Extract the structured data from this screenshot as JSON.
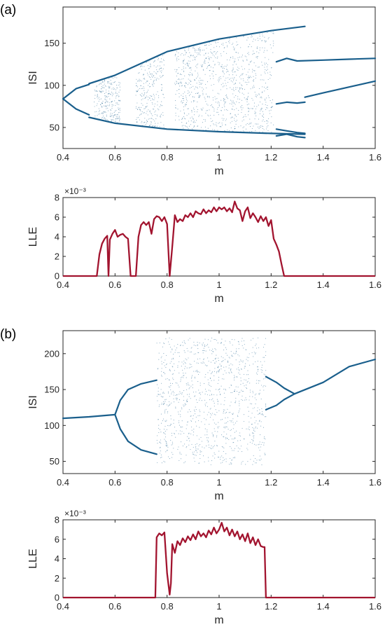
{
  "panels": {
    "a": {
      "label": "(a)"
    },
    "b": {
      "label": "(b)"
    }
  },
  "colors": {
    "scatter": "#1a5f8c",
    "line": "#a2142f",
    "axis": "#262626"
  },
  "chart_data": [
    {
      "panel": "a",
      "type": "scatter",
      "title": "",
      "xlabel": "m",
      "ylabel": "ISI",
      "xlim": [
        0.4,
        1.6
      ],
      "ylim": [
        25,
        193
      ],
      "xticks": [
        0.4,
        0.6,
        0.8,
        1,
        1.2,
        1.4,
        1.6
      ],
      "xtick_labels": [
        "0.4",
        "0.6",
        "0.8",
        "1",
        "1.2",
        "1.4",
        "1.6"
      ],
      "yticks": [
        50,
        100,
        150
      ],
      "ytick_labels": [
        "50",
        "100",
        "150"
      ],
      "description_points": "bifurcation diagram",
      "branches": [
        {
          "x": [
            0.4,
            0.45,
            0.5
          ],
          "y": [
            84,
            96,
            101
          ]
        },
        {
          "x": [
            0.4,
            0.45,
            0.5
          ],
          "y": [
            84,
            72,
            65
          ]
        },
        {
          "x": [
            0.5,
            0.6,
            0.8,
            1.0,
            1.2,
            1.33
          ],
          "y": [
            62,
            55,
            48,
            45,
            43,
            42
          ]
        },
        {
          "x": [
            0.5,
            0.6,
            0.8,
            1.0,
            1.2,
            1.33
          ],
          "y": [
            102,
            112,
            140,
            155,
            165,
            170
          ]
        },
        {
          "x": [
            1.22,
            1.26,
            1.3,
            1.4,
            1.5,
            1.6
          ],
          "y": [
            128,
            132,
            129,
            130,
            131,
            132
          ]
        },
        {
          "x": [
            1.22,
            1.26,
            1.3,
            1.33
          ],
          "y": [
            78,
            80,
            79,
            80
          ]
        },
        {
          "x": [
            1.33,
            1.4,
            1.5,
            1.6
          ],
          "y": [
            86,
            91,
            98,
            105
          ]
        },
        {
          "x": [
            1.22,
            1.26,
            1.3,
            1.33
          ],
          "y": [
            48,
            46,
            44,
            43
          ]
        },
        {
          "x": [
            1.22,
            1.26,
            1.3,
            1.33
          ],
          "y": [
            40,
            42,
            39,
            38
          ]
        }
      ],
      "chaotic_ranges": [
        [
          0.52,
          0.62
        ],
        [
          0.68,
          0.79
        ],
        [
          0.83,
          1.21
        ]
      ]
    },
    {
      "panel": "a",
      "type": "line",
      "title": "",
      "xlabel": "m",
      "ylabel": "LLE",
      "exponent_label": "×10⁻³",
      "xlim": [
        0.4,
        1.6
      ],
      "ylim": [
        0,
        8
      ],
      "xticks": [
        0.4,
        0.6,
        0.8,
        1,
        1.2,
        1.4,
        1.6
      ],
      "xtick_labels": [
        "0.4",
        "0.6",
        "0.8",
        "1",
        "1.2",
        "1.4",
        "1.6"
      ],
      "yticks": [
        0,
        2,
        4,
        6,
        8
      ],
      "ytick_labels": [
        "0",
        "2",
        "4",
        "6",
        "8"
      ],
      "x": [
        0.4,
        0.53,
        0.54,
        0.55,
        0.56,
        0.57,
        0.575,
        0.58,
        0.59,
        0.6,
        0.61,
        0.62,
        0.63,
        0.64,
        0.65,
        0.66,
        0.67,
        0.68,
        0.69,
        0.7,
        0.71,
        0.72,
        0.73,
        0.74,
        0.75,
        0.76,
        0.77,
        0.78,
        0.79,
        0.8,
        0.81,
        0.82,
        0.83,
        0.84,
        0.85,
        0.86,
        0.87,
        0.88,
        0.89,
        0.9,
        0.91,
        0.92,
        0.93,
        0.94,
        0.95,
        0.96,
        0.97,
        0.98,
        0.99,
        1.0,
        1.01,
        1.02,
        1.03,
        1.04,
        1.05,
        1.06,
        1.07,
        1.08,
        1.09,
        1.1,
        1.11,
        1.12,
        1.13,
        1.14,
        1.15,
        1.16,
        1.17,
        1.18,
        1.19,
        1.2,
        1.21,
        1.22,
        1.23,
        1.24,
        1.25,
        1.3,
        1.4,
        1.5,
        1.6
      ],
      "y": [
        0,
        0,
        2.2,
        3.3,
        3.8,
        4.1,
        0,
        3.7,
        4.3,
        4.7,
        4.0,
        4.2,
        4.3,
        4.0,
        3.8,
        0,
        0,
        0,
        4.0,
        5.2,
        5.5,
        5.2,
        5.5,
        4.3,
        5.8,
        6.1,
        6.0,
        5.6,
        6.0,
        5.3,
        0,
        3.0,
        6.2,
        5.5,
        5.8,
        5.6,
        6.2,
        6.0,
        6.4,
        6.0,
        6.6,
        6.4,
        6.3,
        6.8,
        6.4,
        6.7,
        6.5,
        7.0,
        6.6,
        7.0,
        6.8,
        7.0,
        6.6,
        6.9,
        6.5,
        7.6,
        6.9,
        6.7,
        5.6,
        6.6,
        7.0,
        5.9,
        6.4,
        6.0,
        5.5,
        6.1,
        5.6,
        6.0,
        5.1,
        5.7,
        3.8,
        3.2,
        2.5,
        1.2,
        0,
        0,
        0,
        0,
        0
      ]
    },
    {
      "panel": "b",
      "type": "scatter",
      "title": "",
      "xlabel": "m",
      "ylabel": "ISI",
      "xlim": [
        0.4,
        1.6
      ],
      "ylim": [
        33,
        232
      ],
      "xticks": [
        0.4,
        0.6,
        0.8,
        1,
        1.2,
        1.4,
        1.6
      ],
      "xtick_labels": [
        "0.4",
        "0.6",
        "0.8",
        "1",
        "1.2",
        "1.4",
        "1.6"
      ],
      "yticks": [
        50,
        100,
        150,
        200
      ],
      "ytick_labels": [
        "50",
        "100",
        "150",
        "200"
      ],
      "description_points": "bifurcation diagram",
      "branches": [
        {
          "x": [
            0.4,
            0.5,
            0.6
          ],
          "y": [
            110,
            112,
            115
          ]
        },
        {
          "x": [
            0.6,
            0.62,
            0.65,
            0.7,
            0.76
          ],
          "y": [
            115,
            135,
            150,
            158,
            163
          ]
        },
        {
          "x": [
            0.6,
            0.62,
            0.65,
            0.7,
            0.76
          ],
          "y": [
            115,
            95,
            78,
            66,
            60
          ]
        },
        {
          "x": [
            1.18,
            1.22,
            1.25,
            1.29
          ],
          "y": [
            168,
            160,
            152,
            144
          ]
        },
        {
          "x": [
            1.18,
            1.22,
            1.25,
            1.29
          ],
          "y": [
            122,
            128,
            136,
            144
          ]
        },
        {
          "x": [
            1.29,
            1.4,
            1.5,
            1.6
          ],
          "y": [
            144,
            160,
            182,
            192
          ]
        }
      ],
      "chaotic_ranges": [
        [
          0.76,
          1.18
        ]
      ]
    },
    {
      "panel": "b",
      "type": "line",
      "title": "",
      "xlabel": "m",
      "ylabel": "LLE",
      "exponent_label": "×10⁻³",
      "xlim": [
        0.4,
        1.6
      ],
      "ylim": [
        0,
        8
      ],
      "xticks": [
        0.4,
        0.6,
        0.8,
        1,
        1.2,
        1.4,
        1.6
      ],
      "xtick_labels": [
        "0.4",
        "0.6",
        "0.8",
        "1",
        "1.2",
        "1.4",
        "1.6"
      ],
      "yticks": [
        0,
        2,
        4,
        6,
        8
      ],
      "ytick_labels": [
        "0",
        "2",
        "4",
        "6",
        "8"
      ],
      "x": [
        0.4,
        0.755,
        0.76,
        0.77,
        0.78,
        0.79,
        0.8,
        0.81,
        0.815,
        0.82,
        0.83,
        0.84,
        0.85,
        0.86,
        0.87,
        0.88,
        0.89,
        0.9,
        0.91,
        0.92,
        0.93,
        0.94,
        0.95,
        0.96,
        0.97,
        0.98,
        0.99,
        1.0,
        1.01,
        1.02,
        1.03,
        1.04,
        1.05,
        1.06,
        1.07,
        1.08,
        1.09,
        1.1,
        1.11,
        1.12,
        1.13,
        1.14,
        1.15,
        1.16,
        1.17,
        1.175,
        1.18,
        1.3,
        1.4,
        1.5,
        1.6
      ],
      "y": [
        0,
        0,
        6.2,
        6.6,
        6.4,
        6.7,
        2.5,
        0.3,
        1.5,
        5.5,
        4.6,
        5.8,
        5.4,
        6.1,
        5.7,
        6.3,
        5.9,
        6.5,
        6.0,
        6.8,
        6.3,
        6.6,
        6.2,
        6.9,
        6.5,
        7.2,
        6.6,
        7.0,
        7.7,
        6.8,
        7.2,
        6.4,
        7.0,
        6.3,
        6.8,
        6.0,
        6.5,
        5.8,
        6.6,
        5.6,
        6.2,
        5.4,
        6.0,
        5.3,
        5.2,
        5.2,
        0,
        0,
        0,
        0,
        0
      ]
    }
  ]
}
